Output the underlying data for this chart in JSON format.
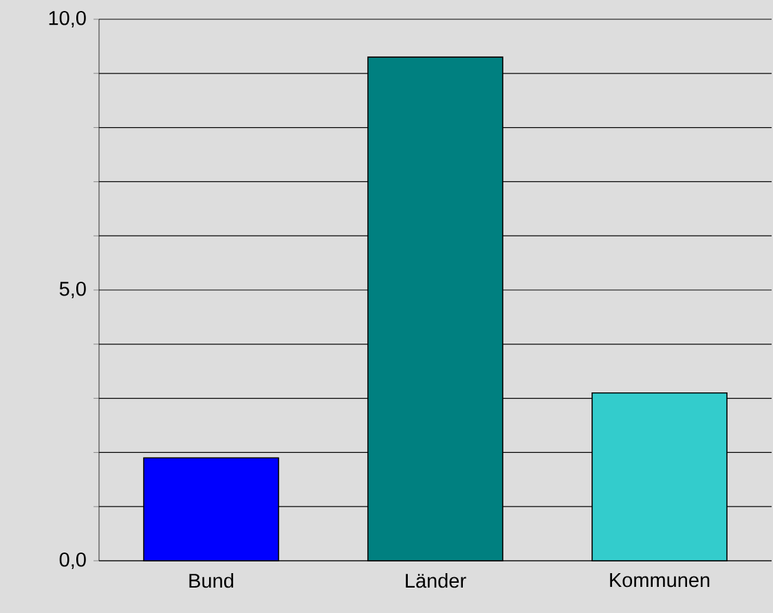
{
  "chart_data": {
    "type": "bar",
    "categories": [
      "Bund",
      "Länder",
      "Kommunen"
    ],
    "values": [
      1.9,
      9.3,
      3.1
    ],
    "colors": [
      "#0000ff",
      "#008080",
      "#33cccc"
    ],
    "ylim": [
      0,
      10
    ],
    "yticks": [
      {
        "value": 0,
        "label": "0,0"
      },
      {
        "value": 1,
        "label": null
      },
      {
        "value": 2,
        "label": null
      },
      {
        "value": 3,
        "label": null
      },
      {
        "value": 4,
        "label": null
      },
      {
        "value": 5,
        "label": "5,0"
      },
      {
        "value": 6,
        "label": null
      },
      {
        "value": 7,
        "label": null
      },
      {
        "value": 8,
        "label": null
      },
      {
        "value": 9,
        "label": null
      },
      {
        "value": 10,
        "label": "10,0"
      }
    ],
    "grid": "y"
  }
}
